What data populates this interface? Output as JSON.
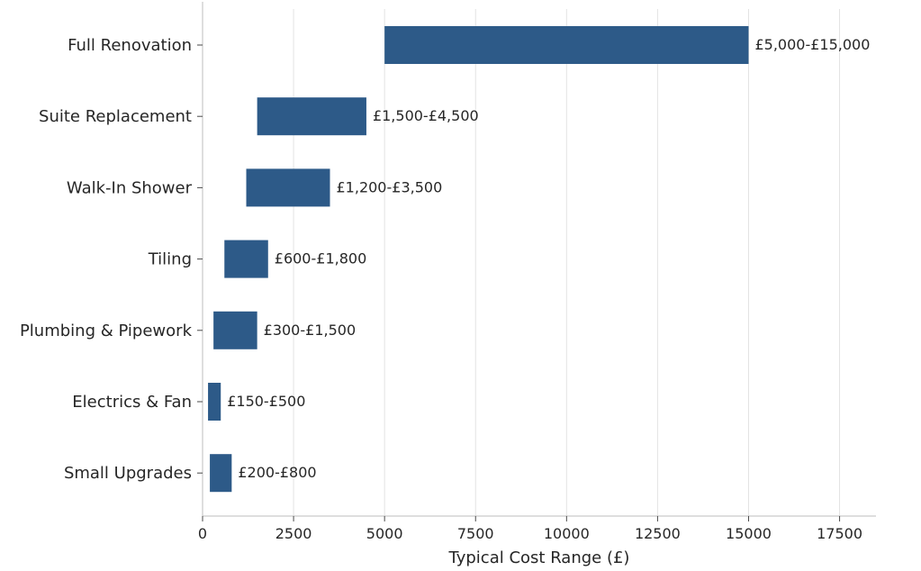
{
  "chart_data": {
    "type": "bar",
    "orientation": "horizontal",
    "range_bars": true,
    "title": "",
    "xlabel": "Typical Cost Range (£)",
    "ylabel": "",
    "xlim": [
      0,
      18500
    ],
    "xticks": [
      0,
      2500,
      5000,
      7500,
      10000,
      12500,
      15000,
      17500
    ],
    "xtick_labels": [
      "0",
      "2500",
      "5000",
      "7500",
      "10000",
      "12500",
      "15000",
      "17500"
    ],
    "grid": "vertical",
    "bar_color": "#2d5a88",
    "categories": [
      "Full Renovation",
      "Suite Replacement",
      "Walk-In Shower",
      "Tiling",
      "Plumbing & Pipework",
      "Electrics & Fan",
      "Small Upgrades"
    ],
    "ranges": [
      [
        5000,
        15000
      ],
      [
        1500,
        4500
      ],
      [
        1200,
        3500
      ],
      [
        600,
        1800
      ],
      [
        300,
        1500
      ],
      [
        150,
        500
      ],
      [
        200,
        800
      ]
    ],
    "data_labels": [
      "£5,000-£15,000",
      "£1,500-£4,500",
      "£1,200-£3,500",
      "£600-£1,800",
      "£300-£1,500",
      "£150-£500",
      "£200-£800"
    ]
  }
}
